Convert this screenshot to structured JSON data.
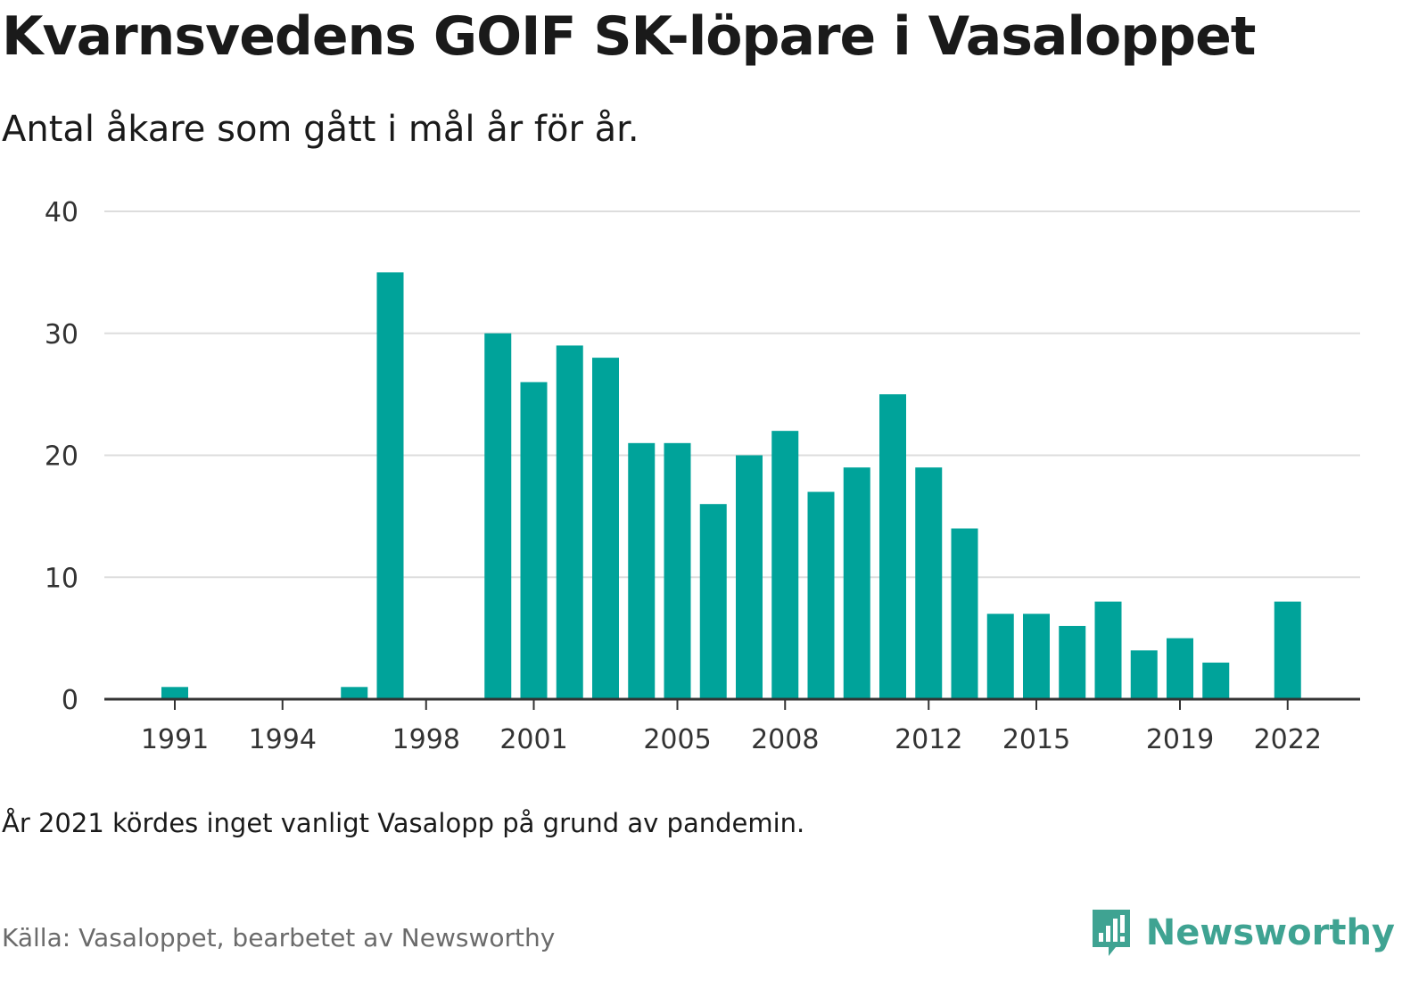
{
  "header": {
    "title": "Kvarnsvedens GOIF SK-löpare i Vasaloppet",
    "subtitle": "Antal åkare som gått i mål år för år."
  },
  "footer": {
    "note": "År 2021 kördes inget vanligt Vasalopp på grund av pandemin.",
    "source": "Källa: Vasaloppet, bearbetet av Newsworthy",
    "brand": "Newsworthy"
  },
  "colors": {
    "bar": "#00a39a",
    "grid": "#dddddd",
    "axis": "#333333",
    "brand": "#3fa392"
  },
  "icons": {
    "brand_logo": "newsworthy-logo-icon"
  },
  "chart_data": {
    "type": "bar",
    "categories": [
      "1991",
      "1992",
      "1993",
      "1994",
      "1995",
      "1996",
      "1997",
      "1998",
      "1999",
      "2000",
      "2001",
      "2002",
      "2003",
      "2004",
      "2005",
      "2006",
      "2007",
      "2008",
      "2009",
      "2010",
      "2011",
      "2012",
      "2013",
      "2014",
      "2015",
      "2016",
      "2017",
      "2018",
      "2019",
      "2020",
      "2021",
      "2022"
    ],
    "values": [
      1,
      0,
      0,
      0,
      0,
      1,
      35,
      0,
      0,
      30,
      26,
      29,
      28,
      21,
      21,
      16,
      20,
      22,
      17,
      19,
      25,
      19,
      14,
      7,
      7,
      6,
      8,
      4,
      5,
      3,
      0,
      8
    ],
    "x_tick_labels": [
      "1991",
      "1994",
      "1998",
      "2001",
      "2005",
      "2008",
      "2012",
      "2015",
      "2019",
      "2022"
    ],
    "y_ticks": [
      0,
      10,
      20,
      30,
      40
    ],
    "ylim": [
      0,
      40
    ],
    "grid": true,
    "legend": "none"
  }
}
